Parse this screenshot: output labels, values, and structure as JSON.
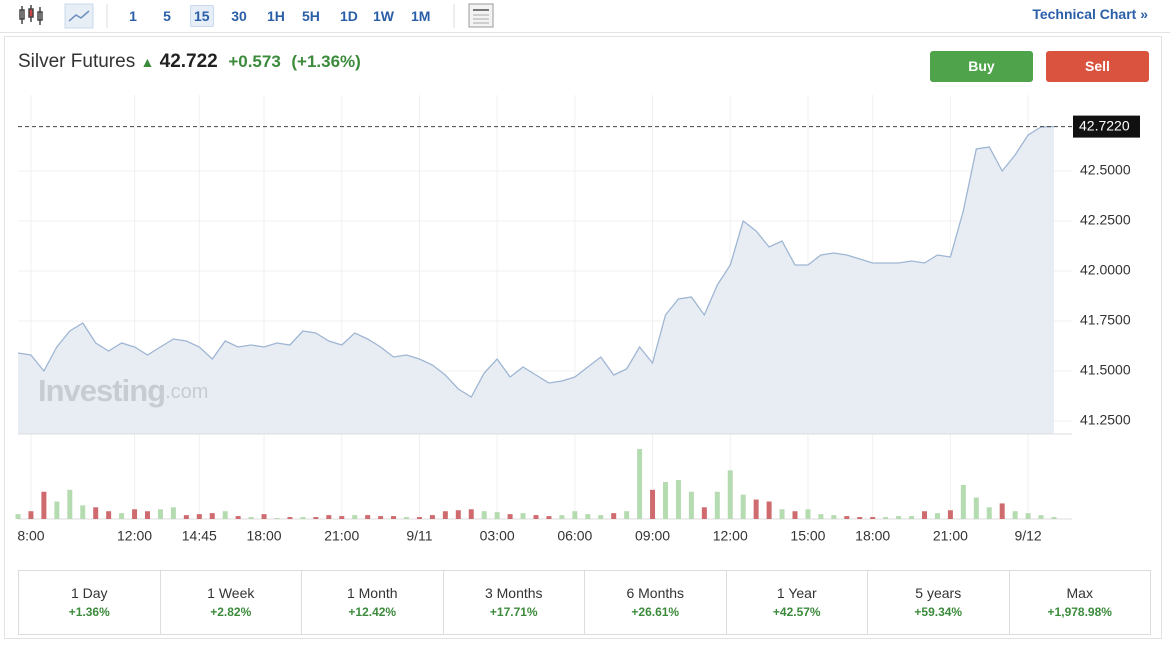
{
  "toolbar": {
    "intervals": [
      "1",
      "5",
      "15",
      "30",
      "1H",
      "5H",
      "1D",
      "1W",
      "1M"
    ],
    "active_interval": 2,
    "link": "Technical Chart »"
  },
  "header": {
    "instrument": "Silver Futures",
    "price": "42.722",
    "change": "+0.573",
    "change_percent": "(+1.36%)",
    "buy": "Buy",
    "sell": "Sell"
  },
  "watermark": {
    "brand": "Investing",
    "suffix": ".com"
  },
  "chart_data": {
    "type": "area",
    "color": "#9fb6d3",
    "fill": "#e8edf4",
    "categories": [
      null,
      "8:00",
      null,
      null,
      null,
      null,
      null,
      null,
      null,
      "12:00",
      null,
      null,
      null,
      null,
      "14:45",
      null,
      null,
      null,
      null,
      "18:00",
      null,
      null,
      null,
      null,
      null,
      "21:00",
      null,
      null,
      null,
      null,
      null,
      "9/11",
      null,
      null,
      null,
      null,
      null,
      "03:00",
      null,
      null,
      null,
      null,
      null,
      "06:00",
      null,
      null,
      null,
      null,
      null,
      "09:00",
      null,
      null,
      null,
      null,
      null,
      "12:00",
      null,
      null,
      null,
      null,
      null,
      "15:00",
      null,
      null,
      null,
      null,
      "18:00",
      null,
      null,
      null,
      null,
      null,
      "21:00",
      null,
      null,
      null,
      null,
      null,
      "9/12",
      null,
      null
    ],
    "values": [
      41.59,
      41.58,
      41.5,
      41.62,
      41.7,
      41.74,
      41.64,
      41.6,
      41.64,
      41.62,
      41.58,
      41.62,
      41.66,
      41.65,
      41.62,
      41.56,
      41.65,
      41.62,
      41.63,
      41.62,
      41.64,
      41.63,
      41.7,
      41.69,
      41.65,
      41.63,
      41.69,
      41.66,
      41.62,
      41.57,
      41.58,
      41.56,
      41.53,
      41.48,
      41.41,
      41.37,
      41.49,
      41.56,
      41.47,
      41.52,
      41.48,
      41.44,
      41.45,
      41.47,
      41.52,
      41.57,
      41.48,
      41.51,
      41.62,
      41.54,
      41.78,
      41.86,
      41.87,
      41.78,
      41.93,
      42.03,
      42.25,
      42.2,
      42.12,
      42.15,
      42.03,
      42.03,
      42.08,
      42.09,
      42.08,
      42.06,
      42.04,
      42.04,
      42.04,
      42.05,
      42.04,
      42.08,
      42.07,
      42.3,
      42.61,
      42.62,
      42.5,
      42.58,
      42.68,
      42.72,
      42.722
    ],
    "ylim": [
      41.185,
      42.88
    ],
    "yticks": [
      {
        "value": 41.25,
        "label": "41.2500"
      },
      {
        "value": 41.5,
        "label": "41.5000"
      },
      {
        "value": 41.75,
        "label": "41.7500"
      },
      {
        "value": 42,
        "label": "42.0000"
      },
      {
        "value": 42.25,
        "label": "42.2500"
      },
      {
        "value": 42.5,
        "label": "42.5000"
      }
    ],
    "current_price": {
      "value": 42.722,
      "label": "42.7220"
    },
    "grid": true,
    "volume": {
      "up_color": "#b5dbb0",
      "down_color": "#cf6b6e",
      "ylim": [
        0,
        75
      ],
      "values": [
        5,
        8,
        28,
        18,
        30,
        14,
        12,
        8,
        6,
        10,
        8,
        10,
        12,
        4,
        5,
        6,
        8,
        3,
        2,
        5,
        1,
        2,
        2,
        2,
        4,
        3,
        4,
        4,
        3,
        3,
        2,
        2,
        4,
        8,
        9,
        10,
        8,
        7,
        5,
        6,
        4,
        3,
        4,
        8,
        5,
        4,
        6,
        8,
        72,
        30,
        38,
        40,
        28,
        12,
        28,
        50,
        25,
        20,
        18,
        10,
        8,
        10,
        5,
        4,
        3,
        2,
        2,
        2,
        3,
        3,
        8,
        6,
        9,
        35,
        22,
        12,
        16,
        8,
        6,
        4,
        2
      ]
    }
  },
  "performance": [
    {
      "period": "1 Day",
      "change": "+1.36%"
    },
    {
      "period": "1 Week",
      "change": "+2.82%"
    },
    {
      "period": "1 Month",
      "change": "+12.42%"
    },
    {
      "period": "3 Months",
      "change": "+17.71%"
    },
    {
      "period": "6 Months",
      "change": "+26.61%"
    },
    {
      "period": "1 Year",
      "change": "+42.57%"
    },
    {
      "period": "5 years",
      "change": "+59.34%"
    },
    {
      "period": "Max",
      "change": "+1,978.98%"
    }
  ]
}
